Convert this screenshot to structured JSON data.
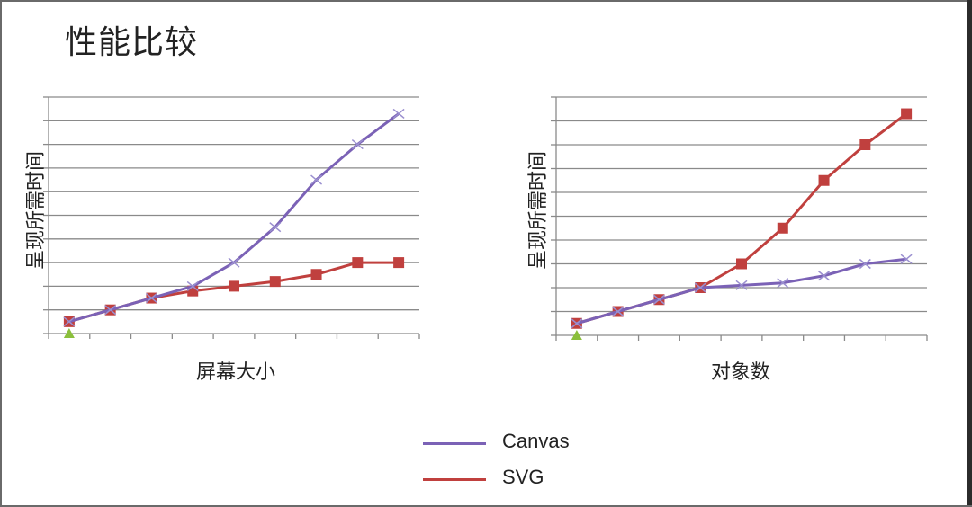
{
  "slide": {
    "title": "性能比较"
  },
  "legend": [
    {
      "name": "Canvas",
      "color": "#7b62b6"
    },
    {
      "name": "SVG",
      "color": "#c0403e"
    }
  ],
  "chart_data": [
    {
      "type": "line",
      "xlabel": "屏幕大小",
      "ylabel": "呈现所需时间",
      "grid": true,
      "points_count": 9,
      "ylim": [
        0,
        10
      ],
      "series": [
        {
          "name": "Canvas",
          "color": "#7b62b6",
          "marker": "x",
          "values": [
            0.5,
            1.0,
            1.5,
            2.0,
            3.0,
            4.5,
            6.5,
            8.0,
            9.3
          ]
        },
        {
          "name": "SVG",
          "color": "#c0403e",
          "marker": "square",
          "values": [
            0.5,
            1.0,
            1.5,
            1.8,
            2.0,
            2.2,
            2.5,
            3.0,
            3.0
          ]
        }
      ]
    },
    {
      "type": "line",
      "xlabel": "对象数",
      "ylabel": "呈现所需时间",
      "grid": true,
      "points_count": 9,
      "ylim": [
        0,
        10
      ],
      "series": [
        {
          "name": "Canvas",
          "color": "#7b62b6",
          "marker": "x",
          "values": [
            0.5,
            1.0,
            1.5,
            2.0,
            2.1,
            2.2,
            2.5,
            3.0,
            3.2
          ]
        },
        {
          "name": "SVG",
          "color": "#c0403e",
          "marker": "square",
          "values": [
            0.5,
            1.0,
            1.5,
            2.0,
            3.0,
            4.5,
            6.5,
            8.0,
            9.3
          ]
        }
      ]
    }
  ]
}
